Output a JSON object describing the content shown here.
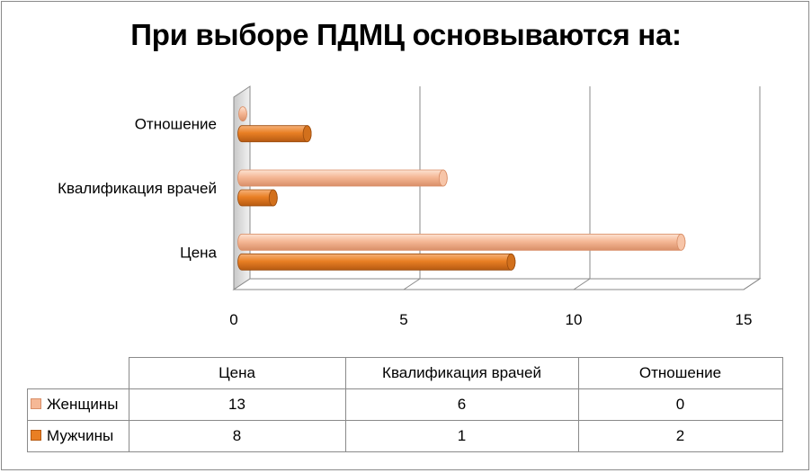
{
  "chart_data": {
    "type": "bar",
    "orientation": "horizontal",
    "style": "3d-cylinder",
    "title": "При выборе ПДМЦ основываются на:",
    "categories": [
      "Цена",
      "Квалификация врачей",
      "Отношение"
    ],
    "xlim": [
      0,
      15
    ],
    "x_ticks": [
      "0",
      "5",
      "10",
      "15"
    ],
    "grid": true,
    "legend": "data-table",
    "series": [
      {
        "name": "Женщины",
        "values": [
          13,
          6,
          0
        ],
        "color": "#f5b896"
      },
      {
        "name": "Мужчины",
        "values": [
          8,
          1,
          2
        ],
        "color": "#e97f24"
      }
    ]
  },
  "table": {
    "headers": [
      "Цена",
      "Квалификация врачей",
      "Отношение"
    ],
    "rows": [
      {
        "label": "Женщины",
        "cells": [
          "13",
          "6",
          "0"
        ]
      },
      {
        "label": "Мужчины",
        "cells": [
          "8",
          "1",
          "2"
        ]
      }
    ]
  }
}
